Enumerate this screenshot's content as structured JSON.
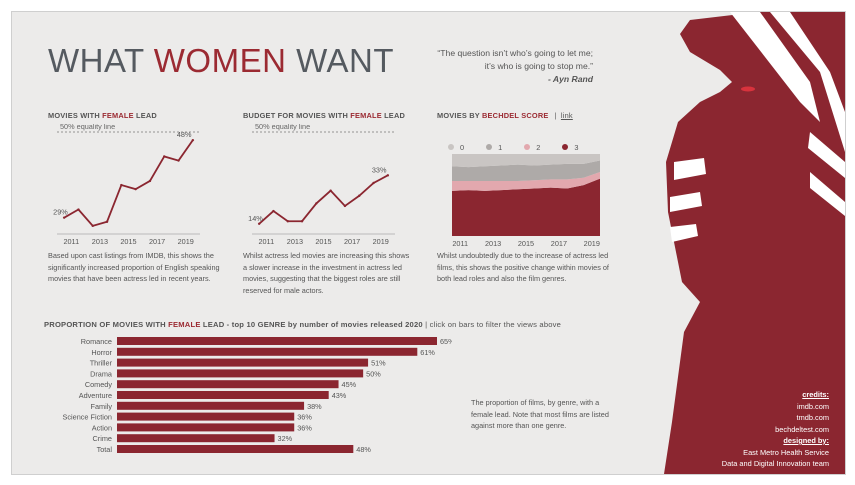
{
  "title": {
    "part1": "WHAT ",
    "accent": "WOMEN",
    "part2": " WANT"
  },
  "quote": {
    "line1": "“The question isn’t who’s going to let me;",
    "line2": "it’s who is going to stop me.”",
    "author": "- Ayn Rand"
  },
  "colors": {
    "accent": "#8b2630",
    "background": "#ecebea",
    "grid": "#b0b0b0"
  },
  "panel1": {
    "title_prefix": "MOVIES WITH ",
    "title_accent": "FEMALE",
    "title_suffix": " LEAD",
    "ref_label": "50% equality line",
    "first_label": "29%",
    "last_label": "48%",
    "description": "Based upon cast listings from IMDB, this shows the significantly increased proportion of English speaking movies that have been actress led in recent years."
  },
  "panel2": {
    "title_prefix": "BUDGET FOR MOVIES WITH ",
    "title_accent": "FEMALE",
    "title_suffix": " LEAD",
    "ref_label": "50% equality line",
    "first_label": "14%",
    "last_label": "33%",
    "description": "Whilst actress led movies are increasing this shows a slower increase in the investment in actress led movies, suggesting that the biggest roles are still reserved for male actors."
  },
  "panel3": {
    "title_prefix": "MOVIES BY ",
    "title_accent": "BECHDEL SCORE",
    "separator": "|",
    "link": "link",
    "legend": [
      {
        "label": "0",
        "color": "#c9c5c3"
      },
      {
        "label": "1",
        "color": "#aeaaa8"
      },
      {
        "label": "2",
        "color": "#e2a8ae"
      },
      {
        "label": "3",
        "color": "#8b2630"
      }
    ],
    "description": "Whilst undoubtedly due to the increase of actress led films, this shows the  positive change within movies of both lead roles and also the  film genres."
  },
  "bars_header": {
    "prefix": "PROPORTION OF MOVIES WITH ",
    "accent": "FEMALE",
    "suffix": " LEAD - top 10 GENRE by number of movies released 2020",
    "hint": "|  click on bars to filter the views above"
  },
  "bars_note": "The proportion of films, by genre, with a female lead.  Note that most films are listed against more than one genre.",
  "credits": {
    "heading": "credits:",
    "lines": [
      "imdb.com",
      "tmdb.com",
      "bechdeltest.com"
    ],
    "designed_heading": "designed by:",
    "designed_lines": [
      "East Metro Health Service",
      "Data and Digital Innovation team"
    ]
  },
  "chart_data": [
    {
      "type": "line",
      "title": "MOVIES WITH FEMALE LEAD",
      "x": [
        2010,
        2011,
        2012,
        2013,
        2014,
        2015,
        2016,
        2017,
        2018,
        2019,
        2020
      ],
      "series": [
        {
          "values": [
            29,
            31,
            27,
            28,
            37,
            36,
            38,
            44,
            43,
            48
          ]
        }
      ],
      "x_values": [
        2010.5,
        2011.5,
        2012.5,
        2013.5,
        2014.5,
        2015.5,
        2016.5,
        2017.5,
        2018.5,
        2019.5
      ],
      "xticks": [
        "2011",
        "2013",
        "2015",
        "2017",
        "2019"
      ],
      "reference_line": 50,
      "ylim": [
        25,
        50
      ]
    },
    {
      "type": "line",
      "title": "BUDGET FOR MOVIES WITH FEMALE LEAD",
      "series": [
        {
          "values": [
            14,
            19,
            15,
            15,
            22,
            27,
            21,
            25,
            30,
            33
          ]
        }
      ],
      "x_values": [
        2010.5,
        2011.5,
        2012.5,
        2013.5,
        2014.5,
        2015.5,
        2016.5,
        2017.5,
        2018.5,
        2019.5
      ],
      "xticks": [
        "2011",
        "2013",
        "2015",
        "2017",
        "2019"
      ],
      "reference_line": 50,
      "ylim": [
        10,
        50
      ]
    },
    {
      "type": "area",
      "title": "MOVIES BY BECHDEL SCORE",
      "stacked_percent": true,
      "x_values": [
        2010.5,
        2011.5,
        2012.5,
        2013.5,
        2014.5,
        2015.5,
        2016.5,
        2017.5,
        2018.5,
        2019.5
      ],
      "xticks": [
        "2011",
        "2013",
        "2015",
        "2017",
        "2019"
      ],
      "series": [
        {
          "name": "3",
          "values": [
            55,
            56,
            55,
            56,
            57,
            58,
            59,
            58,
            62,
            70
          ]
        },
        {
          "name": "2",
          "values": [
            12,
            11,
            12,
            11,
            10,
            10,
            10,
            11,
            9,
            8
          ]
        },
        {
          "name": "1",
          "values": [
            18,
            17,
            18,
            19,
            20,
            18,
            18,
            19,
            17,
            14
          ]
        },
        {
          "name": "0",
          "values": [
            15,
            16,
            15,
            14,
            13,
            14,
            13,
            12,
            12,
            8
          ]
        }
      ],
      "ylim": [
        0,
        100
      ]
    },
    {
      "type": "bar",
      "orientation": "horizontal",
      "title": "PROPORTION OF MOVIES WITH FEMALE LEAD - top 10 GENRE by number of movies released 2020",
      "categories": [
        "Romance",
        "Horror",
        "Thriller",
        "Drama",
        "Comedy",
        "Adventure",
        "Family",
        "Science Fiction",
        "Action",
        "Crime",
        "Total"
      ],
      "values": [
        65,
        61,
        51,
        50,
        45,
        43,
        38,
        36,
        36,
        32,
        48
      ],
      "value_labels": [
        "65%",
        "61%",
        "51%",
        "50%",
        "45%",
        "43%",
        "38%",
        "36%",
        "36%",
        "32%",
        "48%"
      ],
      "xlim": [
        0,
        65
      ]
    }
  ]
}
